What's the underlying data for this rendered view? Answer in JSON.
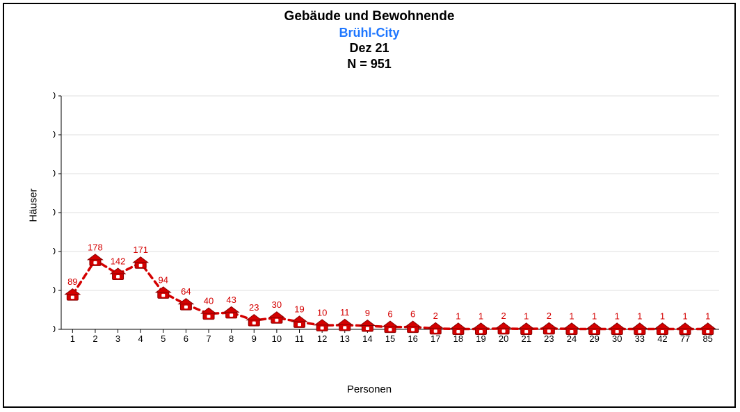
{
  "chart": {
    "type": "line",
    "title_main": "Gebäude und Bewohnende",
    "title_sub": "Brühl-City",
    "title_date": "Dez 21",
    "title_n": "N = 951",
    "title_fontsize_main": 19,
    "title_fontsize_sub": 18,
    "title_color_main": "#000000",
    "title_color_sub": "#1f77ff",
    "xlabel": "Personen",
    "ylabel": "Häuser",
    "label_fontsize": 15,
    "categories": [
      "1",
      "2",
      "3",
      "4",
      "5",
      "6",
      "7",
      "8",
      "9",
      "10",
      "11",
      "12",
      "13",
      "14",
      "15",
      "16",
      "17",
      "18",
      "19",
      "20",
      "21",
      "23",
      "24",
      "29",
      "30",
      "33",
      "42",
      "77",
      "85"
    ],
    "values": [
      89,
      178,
      142,
      171,
      94,
      64,
      40,
      43,
      23,
      30,
      19,
      10,
      11,
      9,
      6,
      6,
      2,
      1,
      1,
      2,
      1,
      2,
      1,
      1,
      1,
      1,
      1,
      1,
      1
    ],
    "ylim": [
      0,
      600
    ],
    "ytick_step": 100,
    "line_color": "#d40000",
    "line_width": 3.5,
    "dash": "8,6",
    "marker_fill": "#d40000",
    "marker_stroke": "#8a0000",
    "marker_highlight": "#ffffff",
    "datalabel_color": "#d40000",
    "datalabel_fontsize": 13,
    "tick_fontsize": 13,
    "tick_color": "#000000",
    "axis_color": "#000000",
    "grid_color": "#bfbfbf",
    "grid_width": 0.6,
    "background_color": "#ffffff",
    "frame_border_color": "#000000",
    "frame_border_width": 2
  }
}
